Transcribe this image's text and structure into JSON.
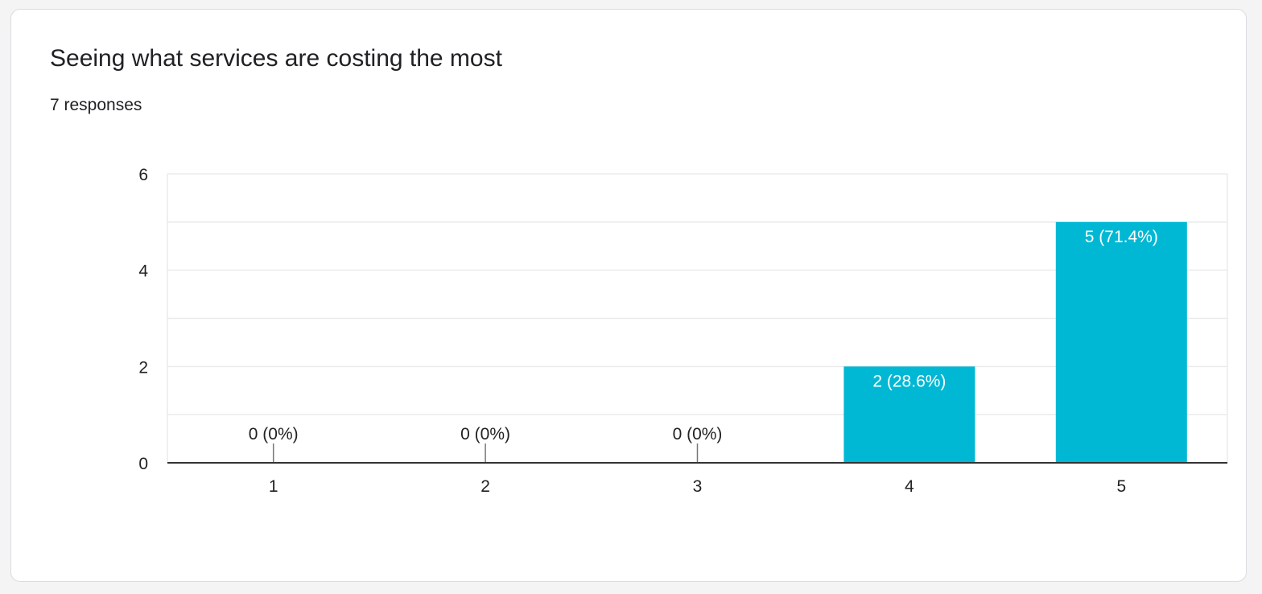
{
  "title": "Seeing what services are costing the most",
  "subtitle": "7 responses",
  "colors": {
    "bar": "#00b8d4",
    "grid": "#ebebeb",
    "axis": "#333333",
    "label_on_bar": "#ffffff",
    "label_above": "#222222"
  },
  "chart_data": {
    "type": "bar",
    "title": "Seeing what services are costing the most",
    "xlabel": "",
    "ylabel": "",
    "categories": [
      "1",
      "2",
      "3",
      "4",
      "5"
    ],
    "values": [
      0,
      0,
      0,
      2,
      5
    ],
    "data_labels": [
      "0 (0%)",
      "0 (0%)",
      "0 (0%)",
      "2 (28.6%)",
      "5 (71.4%)"
    ],
    "ylim": [
      0,
      6
    ],
    "yticks": [
      0,
      2,
      4,
      6
    ],
    "grid": true
  }
}
